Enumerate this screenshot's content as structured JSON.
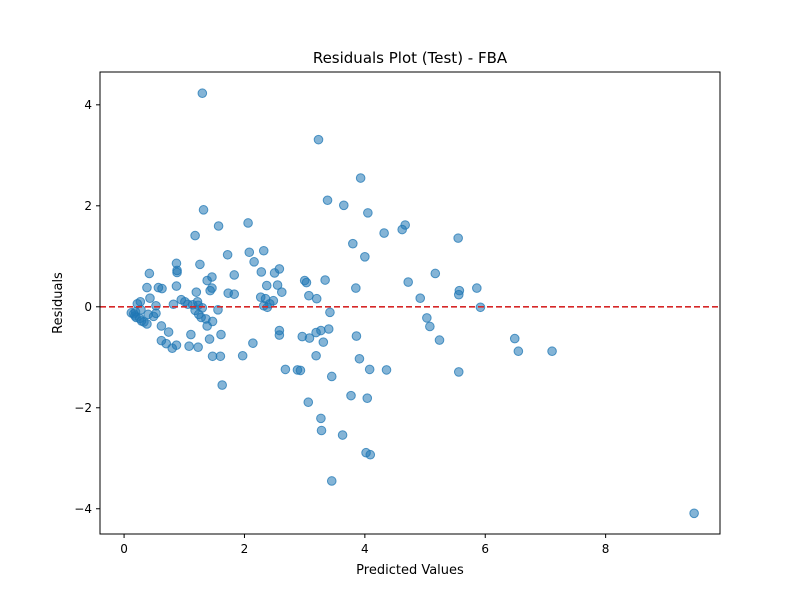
{
  "chart_data": {
    "type": "scatter",
    "title": "Residuals Plot (Test) - FBA",
    "xlabel": "Predicted Values",
    "ylabel": "Residuals",
    "xlim": [
      -0.4,
      9.9
    ],
    "ylim": [
      -4.5,
      4.65
    ],
    "xticks": [
      0,
      2,
      4,
      6,
      8
    ],
    "yticks": [
      -4,
      -2,
      0,
      2,
      4
    ],
    "xtick_labels": [
      "0",
      "2",
      "4",
      "6",
      "8"
    ],
    "ytick_labels": [
      "−4",
      "−2",
      "0",
      "2",
      "4"
    ],
    "grid": false,
    "point_color": "#1f77b4",
    "reference_line": {
      "y": 0,
      "color": "#d62728",
      "style": "dashed"
    },
    "points": [
      [
        1.3,
        4.23
      ],
      [
        3.23,
        3.31
      ],
      [
        3.93,
        2.55
      ],
      [
        3.38,
        2.11
      ],
      [
        3.65,
        2.01
      ],
      [
        4.05,
        1.86
      ],
      [
        1.32,
        1.92
      ],
      [
        1.57,
        1.6
      ],
      [
        2.06,
        1.66
      ],
      [
        4.67,
        1.62
      ],
      [
        4.62,
        1.53
      ],
      [
        4.32,
        1.46
      ],
      [
        5.55,
        1.36
      ],
      [
        1.18,
        1.41
      ],
      [
        3.8,
        1.25
      ],
      [
        2.32,
        1.11
      ],
      [
        2.08,
        1.08
      ],
      [
        1.72,
        1.03
      ],
      [
        4.0,
        0.99
      ],
      [
        2.16,
        0.89
      ],
      [
        1.26,
        0.84
      ],
      [
        0.87,
        0.86
      ],
      [
        0.88,
        0.72
      ],
      [
        0.88,
        0.68
      ],
      [
        2.28,
        0.69
      ],
      [
        2.58,
        0.75
      ],
      [
        2.5,
        0.67
      ],
      [
        1.83,
        0.63
      ],
      [
        0.42,
        0.66
      ],
      [
        1.46,
        0.59
      ],
      [
        1.38,
        0.52
      ],
      [
        3.34,
        0.53
      ],
      [
        5.17,
        0.66
      ],
      [
        4.72,
        0.49
      ],
      [
        3.0,
        0.52
      ],
      [
        3.03,
        0.48
      ],
      [
        0.87,
        0.41
      ],
      [
        1.46,
        0.37
      ],
      [
        1.43,
        0.32
      ],
      [
        0.57,
        0.38
      ],
      [
        0.63,
        0.36
      ],
      [
        0.38,
        0.38
      ],
      [
        2.37,
        0.42
      ],
      [
        2.55,
        0.43
      ],
      [
        3.85,
        0.37
      ],
      [
        5.57,
        0.32
      ],
      [
        5.56,
        0.24
      ],
      [
        5.86,
        0.37
      ],
      [
        1.2,
        0.29
      ],
      [
        1.73,
        0.27
      ],
      [
        1.83,
        0.25
      ],
      [
        2.62,
        0.29
      ],
      [
        3.07,
        0.22
      ],
      [
        3.2,
        0.16
      ],
      [
        2.27,
        0.19
      ],
      [
        2.35,
        0.16
      ],
      [
        2.48,
        0.12
      ],
      [
        2.42,
        0.06
      ],
      [
        2.32,
        0.02
      ],
      [
        2.38,
        -0.01
      ],
      [
        4.92,
        0.17
      ],
      [
        0.43,
        0.17
      ],
      [
        0.27,
        0.1
      ],
      [
        0.22,
        0.06
      ],
      [
        0.95,
        0.14
      ],
      [
        1.01,
        0.1
      ],
      [
        1.06,
        0.05
      ],
      [
        1.14,
        0.04
      ],
      [
        1.22,
        0.1
      ],
      [
        1.23,
        0.03
      ],
      [
        1.3,
        -0.02
      ],
      [
        1.56,
        -0.06
      ],
      [
        0.82,
        0.05
      ],
      [
        0.53,
        0.02
      ],
      [
        0.28,
        -0.06
      ],
      [
        0.19,
        -0.1
      ],
      [
        0.12,
        -0.12
      ],
      [
        0.16,
        -0.14
      ],
      [
        0.18,
        -0.18
      ],
      [
        0.2,
        -0.21
      ],
      [
        0.26,
        -0.23
      ],
      [
        0.29,
        -0.28
      ],
      [
        0.33,
        -0.3
      ],
      [
        0.38,
        -0.34
      ],
      [
        0.49,
        -0.19
      ],
      [
        0.53,
        -0.13
      ],
      [
        0.4,
        -0.15
      ],
      [
        1.18,
        -0.07
      ],
      [
        1.24,
        -0.15
      ],
      [
        1.28,
        -0.21
      ],
      [
        1.36,
        -0.24
      ],
      [
        1.47,
        -0.29
      ],
      [
        1.38,
        -0.38
      ],
      [
        3.42,
        -0.11
      ],
      [
        5.92,
        -0.01
      ],
      [
        5.03,
        -0.22
      ],
      [
        5.08,
        -0.39
      ],
      [
        0.62,
        -0.38
      ],
      [
        0.74,
        -0.5
      ],
      [
        1.11,
        -0.55
      ],
      [
        1.61,
        -0.55
      ],
      [
        2.58,
        -0.47
      ],
      [
        2.58,
        -0.56
      ],
      [
        3.4,
        -0.44
      ],
      [
        3.27,
        -0.47
      ],
      [
        3.19,
        -0.51
      ],
      [
        3.86,
        -0.58
      ],
      [
        2.96,
        -0.59
      ],
      [
        3.08,
        -0.62
      ],
      [
        3.31,
        -0.7
      ],
      [
        5.24,
        -0.66
      ],
      [
        6.49,
        -0.63
      ],
      [
        6.55,
        -0.88
      ],
      [
        7.11,
        -0.88
      ],
      [
        0.62,
        -0.67
      ],
      [
        0.7,
        -0.73
      ],
      [
        0.8,
        -0.82
      ],
      [
        0.87,
        -0.76
      ],
      [
        1.08,
        -0.78
      ],
      [
        1.23,
        -0.8
      ],
      [
        2.14,
        -0.72
      ],
      [
        1.42,
        -0.64
      ],
      [
        1.47,
        -0.98
      ],
      [
        1.6,
        -0.98
      ],
      [
        1.97,
        -0.97
      ],
      [
        3.19,
        -0.97
      ],
      [
        3.91,
        -1.03
      ],
      [
        2.68,
        -1.24
      ],
      [
        2.88,
        -1.25
      ],
      [
        2.93,
        -1.26
      ],
      [
        4.08,
        -1.24
      ],
      [
        4.36,
        -1.25
      ],
      [
        5.56,
        -1.29
      ],
      [
        3.45,
        -1.38
      ],
      [
        1.63,
        -1.55
      ],
      [
        3.77,
        -1.76
      ],
      [
        4.04,
        -1.81
      ],
      [
        3.06,
        -1.89
      ],
      [
        3.27,
        -2.21
      ],
      [
        3.28,
        -2.45
      ],
      [
        3.63,
        -2.54
      ],
      [
        4.02,
        -2.89
      ],
      [
        4.09,
        -2.93
      ],
      [
        3.45,
        -3.45
      ],
      [
        9.47,
        -4.09
      ]
    ]
  }
}
